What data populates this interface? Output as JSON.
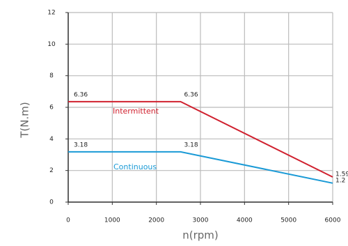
{
  "chart_data": {
    "type": "line",
    "x_label": "n(rpm)",
    "y_label": "T(N.m)",
    "x": [
      0,
      2550,
      6000
    ],
    "series": [
      {
        "name": "Intermittent",
        "color": "#d0202e",
        "values": [
          6.36,
          6.36,
          1.59
        ]
      },
      {
        "name": "Continuous",
        "color": "#1a9ad6",
        "values": [
          3.18,
          3.18,
          1.2
        ]
      }
    ],
    "xlim": [
      0,
      6000
    ],
    "xticks": [
      0,
      1000,
      2000,
      3000,
      4000,
      5000,
      6000
    ],
    "ylim": [
      0,
      12
    ],
    "yticks": [
      0,
      2,
      4,
      6,
      8,
      10,
      12
    ],
    "grid": true
  }
}
